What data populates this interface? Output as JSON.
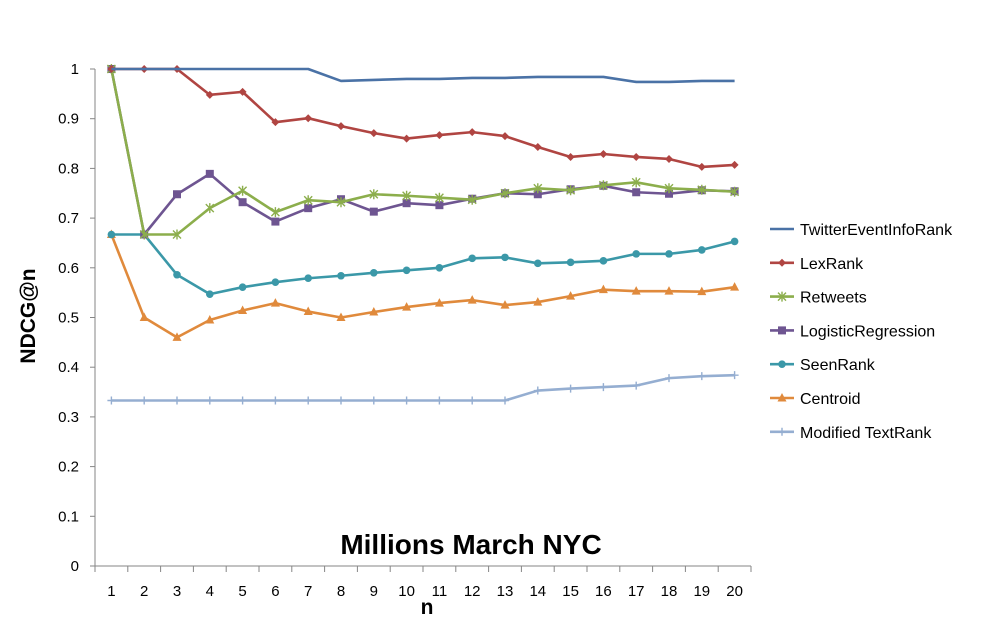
{
  "chart_data": {
    "type": "line",
    "title": "Millions March NYC",
    "xlabel": "n",
    "ylabel": "NDCG@n",
    "ylim": [
      0,
      1
    ],
    "yticks": [
      "0",
      "0.1",
      "0.2",
      "0.3",
      "0.4",
      "0.5",
      "0.6",
      "0.7",
      "0.8",
      "0.9",
      "1"
    ],
    "x": [
      "1",
      "2",
      "3",
      "4",
      "5",
      "6",
      "7",
      "8",
      "9",
      "10",
      "11",
      "12",
      "13",
      "14",
      "15",
      "16",
      "17",
      "18",
      "19",
      "20"
    ],
    "grid": false,
    "legend_position": "right",
    "series": [
      {
        "name": "TwitterEventInfoRank",
        "color": "#4a72a6",
        "marker": "none",
        "values": [
          1,
          1,
          1,
          1,
          1,
          1,
          1,
          0.976,
          0.978,
          0.98,
          0.98,
          0.982,
          0.982,
          0.984,
          0.984,
          0.984,
          0.974,
          0.974,
          0.976,
          0.976
        ]
      },
      {
        "name": "LexRank",
        "color": "#b04542",
        "marker": "diamond",
        "values": [
          1,
          1,
          1,
          0.948,
          0.954,
          0.893,
          0.901,
          0.885,
          0.871,
          0.86,
          0.867,
          0.873,
          0.865,
          0.843,
          0.823,
          0.829,
          0.823,
          0.819,
          0.803,
          0.807
        ]
      },
      {
        "name": "Retweets",
        "color": "#8cae4c",
        "marker": "star",
        "values": [
          1,
          0.667,
          0.667,
          0.72,
          0.755,
          0.712,
          0.736,
          0.732,
          0.748,
          0.745,
          0.741,
          0.737,
          0.75,
          0.76,
          0.756,
          0.766,
          0.772,
          0.76,
          0.757,
          0.753
        ]
      },
      {
        "name": "LogisticRegression",
        "color": "#6e5591",
        "marker": "square",
        "values": [
          1,
          0.667,
          0.748,
          0.789,
          0.732,
          0.693,
          0.72,
          0.738,
          0.713,
          0.73,
          0.726,
          0.739,
          0.75,
          0.748,
          0.758,
          0.765,
          0.752,
          0.749,
          0.756,
          0.754
        ]
      },
      {
        "name": "SeenRank",
        "color": "#3b98a8",
        "marker": "circle",
        "values": [
          0.667,
          0.667,
          0.586,
          0.547,
          0.561,
          0.571,
          0.579,
          0.584,
          0.59,
          0.595,
          0.6,
          0.619,
          0.621,
          0.609,
          0.611,
          0.614,
          0.628,
          0.628,
          0.636,
          0.653
        ]
      },
      {
        "name": "Centroid",
        "color": "#e08a3c",
        "marker": "triangle",
        "values": [
          0.667,
          0.5,
          0.46,
          0.495,
          0.514,
          0.529,
          0.512,
          0.5,
          0.511,
          0.521,
          0.529,
          0.535,
          0.525,
          0.531,
          0.543,
          0.556,
          0.553,
          0.553,
          0.552,
          0.561
        ]
      },
      {
        "name": "Modified TextRank",
        "color": "#95aed1",
        "marker": "plus",
        "values": [
          0.333,
          0.333,
          0.333,
          0.333,
          0.333,
          0.333,
          0.333,
          0.333,
          0.333,
          0.333,
          0.333,
          0.333,
          0.333,
          0.353,
          0.357,
          0.36,
          0.363,
          0.378,
          0.382,
          0.384
        ]
      }
    ]
  }
}
